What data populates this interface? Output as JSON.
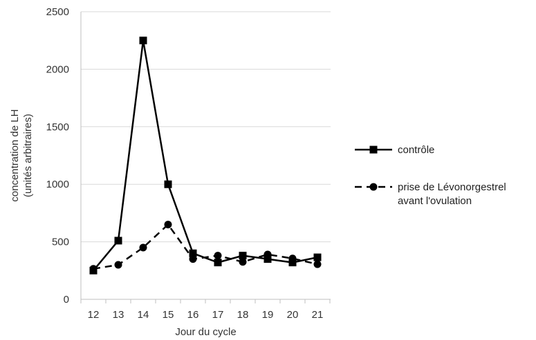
{
  "chart_data": {
    "type": "line",
    "title": "",
    "xlabel": "Jour du cycle",
    "ylabel_line1": "concentration de LH",
    "ylabel_line2": "(unités arbitraires)",
    "x": [
      12,
      13,
      14,
      15,
      16,
      17,
      18,
      19,
      20,
      21
    ],
    "x_tick_labels": [
      "12",
      "13",
      "14",
      "15",
      "16",
      "17",
      "18",
      "19",
      "20",
      "21"
    ],
    "ylim": [
      0,
      2500
    ],
    "y_ticks": [
      0,
      500,
      1000,
      1500,
      2000,
      2500
    ],
    "y_tick_labels": [
      "0",
      "500",
      "1000",
      "1500",
      "2000",
      "2500"
    ],
    "grid": "horizontal",
    "legend_position": "right",
    "series": [
      {
        "name": "contrôle",
        "legend_lines": [
          "contrôle"
        ],
        "marker": "square",
        "line_style": "solid",
        "color": "#000000",
        "values": [
          250,
          510,
          2250,
          1000,
          400,
          320,
          380,
          350,
          320,
          365
        ]
      },
      {
        "name": "prise de Lévonorgestrel avant l'ovulation",
        "legend_lines": [
          "prise de Lévonorgestrel",
          "avant l'ovulation"
        ],
        "marker": "circle",
        "line_style": "dashed",
        "color": "#000000",
        "values": [
          265,
          300,
          450,
          650,
          350,
          380,
          325,
          390,
          355,
          305
        ]
      }
    ]
  }
}
